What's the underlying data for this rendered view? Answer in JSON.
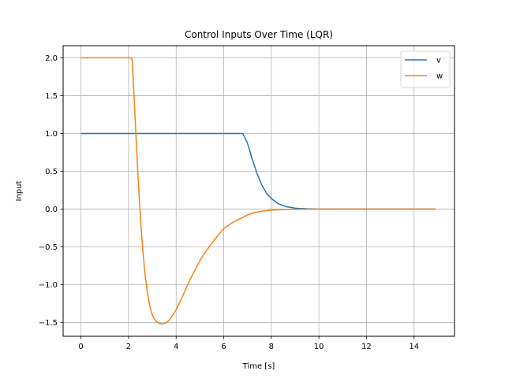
{
  "chart_data": {
    "type": "line",
    "title": "Control Inputs Over Time (LQR)",
    "xlabel": "Time [s]",
    "ylabel": "Input",
    "xlim": [
      -0.75,
      15.7
    ],
    "ylim": [
      -1.68,
      2.16
    ],
    "xticks": [
      0,
      2,
      4,
      6,
      8,
      10,
      12,
      14
    ],
    "xtick_labels": [
      "0",
      "2",
      "4",
      "6",
      "8",
      "10",
      "12",
      "14"
    ],
    "yticks": [
      -1.5,
      -1.0,
      -0.5,
      0.0,
      0.5,
      1.0,
      1.5,
      2.0
    ],
    "ytick_labels": [
      "−1.5",
      "−1.0",
      "−0.5",
      "0.0",
      "0.5",
      "1.0",
      "1.5",
      "2.0"
    ],
    "grid": true,
    "legend_position": "top-right",
    "series": [
      {
        "name": "v",
        "color": "#1f77b4",
        "x": [
          0,
          1,
          2,
          3,
          4,
          5,
          6,
          6.8,
          7.0,
          7.2,
          7.4,
          7.6,
          7.8,
          8.0,
          8.3,
          8.6,
          9.0,
          9.5,
          10,
          11,
          12,
          13,
          14,
          14.9
        ],
        "y": [
          1,
          1,
          1,
          1,
          1,
          1,
          1,
          1,
          0.87,
          0.66,
          0.47,
          0.32,
          0.21,
          0.14,
          0.07,
          0.035,
          0.012,
          0.004,
          0.001,
          0,
          0,
          0,
          0,
          0
        ]
      },
      {
        "name": "w",
        "color": "#ff7f0e",
        "x": [
          0,
          1,
          2,
          2.1,
          2.15,
          2.2,
          2.3,
          2.4,
          2.5,
          2.6,
          2.7,
          2.8,
          2.9,
          3.0,
          3.1,
          3.2,
          3.3,
          3.4,
          3.5,
          3.6,
          3.7,
          3.8,
          4.0,
          4.2,
          4.4,
          4.6,
          4.8,
          5.0,
          5.2,
          5.5,
          5.8,
          6.0,
          6.3,
          6.6,
          6.8,
          7.0,
          7.3,
          7.6,
          8.0,
          8.5,
          9.0,
          10,
          11,
          12,
          13,
          14,
          14.9
        ],
        "y": [
          2,
          2,
          2,
          2,
          1.97,
          1.7,
          1.05,
          0.42,
          -0.12,
          -0.55,
          -0.88,
          -1.12,
          -1.29,
          -1.4,
          -1.46,
          -1.49,
          -1.51,
          -1.52,
          -1.51,
          -1.5,
          -1.47,
          -1.43,
          -1.33,
          -1.2,
          -1.06,
          -0.92,
          -0.8,
          -0.68,
          -0.58,
          -0.45,
          -0.33,
          -0.26,
          -0.19,
          -0.14,
          -0.11,
          -0.075,
          -0.045,
          -0.028,
          -0.014,
          -0.006,
          -0.003,
          -0.001,
          0,
          0,
          0,
          0,
          0
        ]
      }
    ]
  }
}
